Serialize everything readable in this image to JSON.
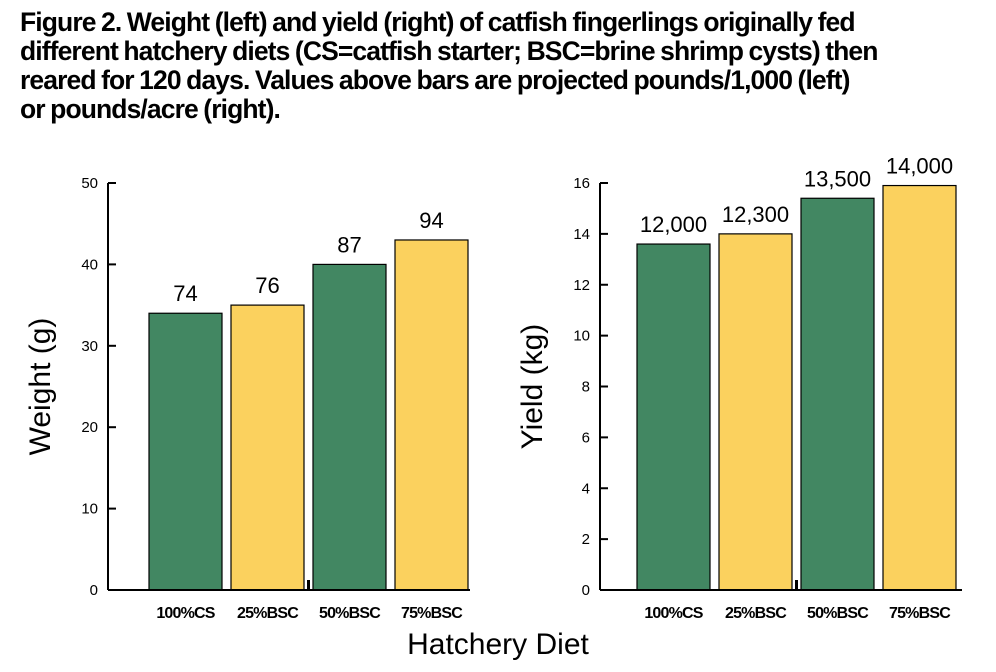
{
  "caption": {
    "lines": [
      "Figure 2. Weight (left) and yield (right) of catfish fingerlings originally fed",
      "different hatchery diets (CS=catfish starter; BSC=brine shrimp cysts) then",
      "reared for 120 days. Values above bars are projected pounds/1,000 (left)",
      "or pounds/acre (right)."
    ]
  },
  "shared_xlabel": "Hatchery Diet",
  "colors": {
    "green": "#428762",
    "yellow": "#FBD15E",
    "axis": "#000000"
  },
  "chart_data": [
    {
      "type": "bar",
      "categories": [
        "100%CS",
        "25%BSC",
        "50%BSC",
        "75%BSC"
      ],
      "values": [
        34,
        35,
        40,
        43
      ],
      "bar_labels": [
        "74",
        "76",
        "87",
        "94"
      ],
      "bar_colors": [
        "#428762",
        "#FBD15E",
        "#428762",
        "#FBD15E"
      ],
      "xlabel": "",
      "ylabel": "Weight (g)",
      "ylim": [
        0,
        50
      ],
      "yticks": [
        0,
        10,
        20,
        30,
        40,
        50
      ],
      "grid": false
    },
    {
      "type": "bar",
      "categories": [
        "100%CS",
        "25%BSC",
        "50%BSC",
        "75%BSC"
      ],
      "values": [
        13.6,
        14.0,
        15.4,
        15.9
      ],
      "bar_labels": [
        "12,000",
        "12,300",
        "13,500",
        "14,000"
      ],
      "bar_colors": [
        "#428762",
        "#FBD15E",
        "#428762",
        "#FBD15E"
      ],
      "xlabel": "",
      "ylabel": "Yield (kg)",
      "ylim": [
        0,
        16
      ],
      "yticks": [
        0,
        2,
        4,
        6,
        8,
        10,
        12,
        14,
        16
      ],
      "grid": false
    }
  ]
}
